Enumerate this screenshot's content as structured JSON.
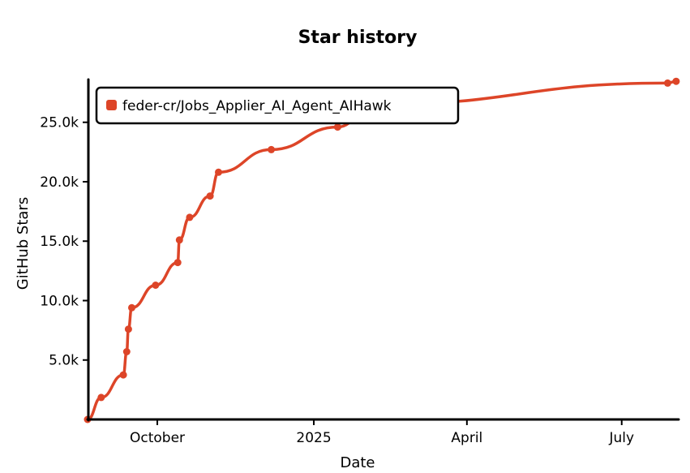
{
  "colors": {
    "series": "#dd4528",
    "axis": "#000000",
    "background": "#ffffff"
  },
  "chart_data": {
    "type": "line",
    "title": "Star history",
    "xlabel": "Date",
    "ylabel": "GitHub Stars",
    "grid": false,
    "legend_position": "top-left",
    "x_range": [
      "2024-08-21",
      "2025-08-03"
    ],
    "y_range": [
      0,
      28600
    ],
    "x_ticks": [
      {
        "date": "2024-10-01",
        "label": "October"
      },
      {
        "date": "2025-01-01",
        "label": "2025"
      },
      {
        "date": "2025-04-01",
        "label": "April"
      },
      {
        "date": "2025-07-01",
        "label": "July"
      }
    ],
    "y_ticks": [
      {
        "value": 5000,
        "label": "5.0k"
      },
      {
        "value": 10000,
        "label": "10.0k"
      },
      {
        "value": 15000,
        "label": "15.0k"
      },
      {
        "value": 20000,
        "label": "20.0k"
      },
      {
        "value": 25000,
        "label": "25.0k"
      }
    ],
    "series": [
      {
        "name": "feder-cr/Jobs_Applier_AI_Agent_AIHawk",
        "points": [
          {
            "date": "2024-08-21",
            "value": 0
          },
          {
            "date": "2024-08-29",
            "value": 1850
          },
          {
            "date": "2024-09-11",
            "value": 3750
          },
          {
            "date": "2024-09-13",
            "value": 5700
          },
          {
            "date": "2024-09-14",
            "value": 7600
          },
          {
            "date": "2024-09-16",
            "value": 9400
          },
          {
            "date": "2024-09-30",
            "value": 11300
          },
          {
            "date": "2024-10-13",
            "value": 13200
          },
          {
            "date": "2024-10-14",
            "value": 15100
          },
          {
            "date": "2024-10-20",
            "value": 17000
          },
          {
            "date": "2024-11-01",
            "value": 18800
          },
          {
            "date": "2024-11-06",
            "value": 20800
          },
          {
            "date": "2024-12-07",
            "value": 22700
          },
          {
            "date": "2025-01-15",
            "value": 24600
          },
          {
            "date": "2025-02-05",
            "value": 26500
          },
          {
            "date": "2025-07-28",
            "value": 28300
          },
          {
            "date": "2025-08-02",
            "value": 28450
          }
        ]
      }
    ]
  }
}
